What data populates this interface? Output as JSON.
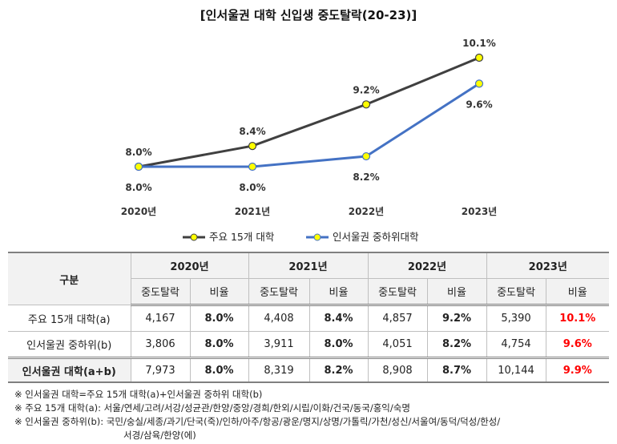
{
  "chart_data": {
    "type": "line",
    "title": "[인서울권 대학 신입생 중도탈락(20-23)]",
    "categories": [
      "2020년",
      "2021년",
      "2022년",
      "2023년"
    ],
    "series": [
      {
        "name": "주요 15개 대학",
        "values": [
          8.0,
          8.4,
          9.2,
          10.1
        ],
        "labels": [
          "8.0%",
          "8.4%",
          "9.2%",
          "10.1%"
        ],
        "color": "#404040"
      },
      {
        "name": "인서울권 중하위대학",
        "values": [
          8.0,
          8.0,
          8.2,
          9.6
        ],
        "labels": [
          "8.0%",
          "8.0%",
          "8.2%",
          "9.6%"
        ],
        "color": "#4472c4"
      }
    ],
    "marker_color": "#ffff00",
    "legend": "bottom",
    "grid": false
  },
  "table": {
    "corner": "구분",
    "years": [
      "2020년",
      "2021년",
      "2022년",
      "2023년"
    ],
    "sub": [
      "중도탈락",
      "비율"
    ],
    "rows": [
      {
        "label": "주요 15개 대학(a)",
        "cells": [
          "4,167",
          "8.0%",
          "4,408",
          "8.4%",
          "4,857",
          "9.2%",
          "5,390",
          "10.1%"
        ]
      },
      {
        "label": "인서울권 중하위(b)",
        "cells": [
          "3,806",
          "8.0%",
          "3,911",
          "8.0%",
          "4,051",
          "8.2%",
          "4,754",
          "9.6%"
        ]
      },
      {
        "label": "인서울권 대학(a+b)",
        "cells": [
          "7,973",
          "8.0%",
          "8,319",
          "8.2%",
          "8,908",
          "8.7%",
          "10,144",
          "9.9%"
        ]
      }
    ]
  },
  "notes": [
    "※ 인서울권 대학=주요 15개 대학(a)+인서울권 중하위 대학(b)",
    "※ 주요 15개 대학(a): 서울/연세/고려/서강/성균관/한양/중앙/경희/한외/시립/이화/건국/동국/홍익/숙명",
    "※ 인서울권 중하위(b): 국민/숭실/세종/과기/단국(죽)/인하/아주/항공/광운/명지/상명/가톨릭/가천/성신/서울여/동덕/덕성/한성/",
    "서경/삼육/한양(에)"
  ]
}
